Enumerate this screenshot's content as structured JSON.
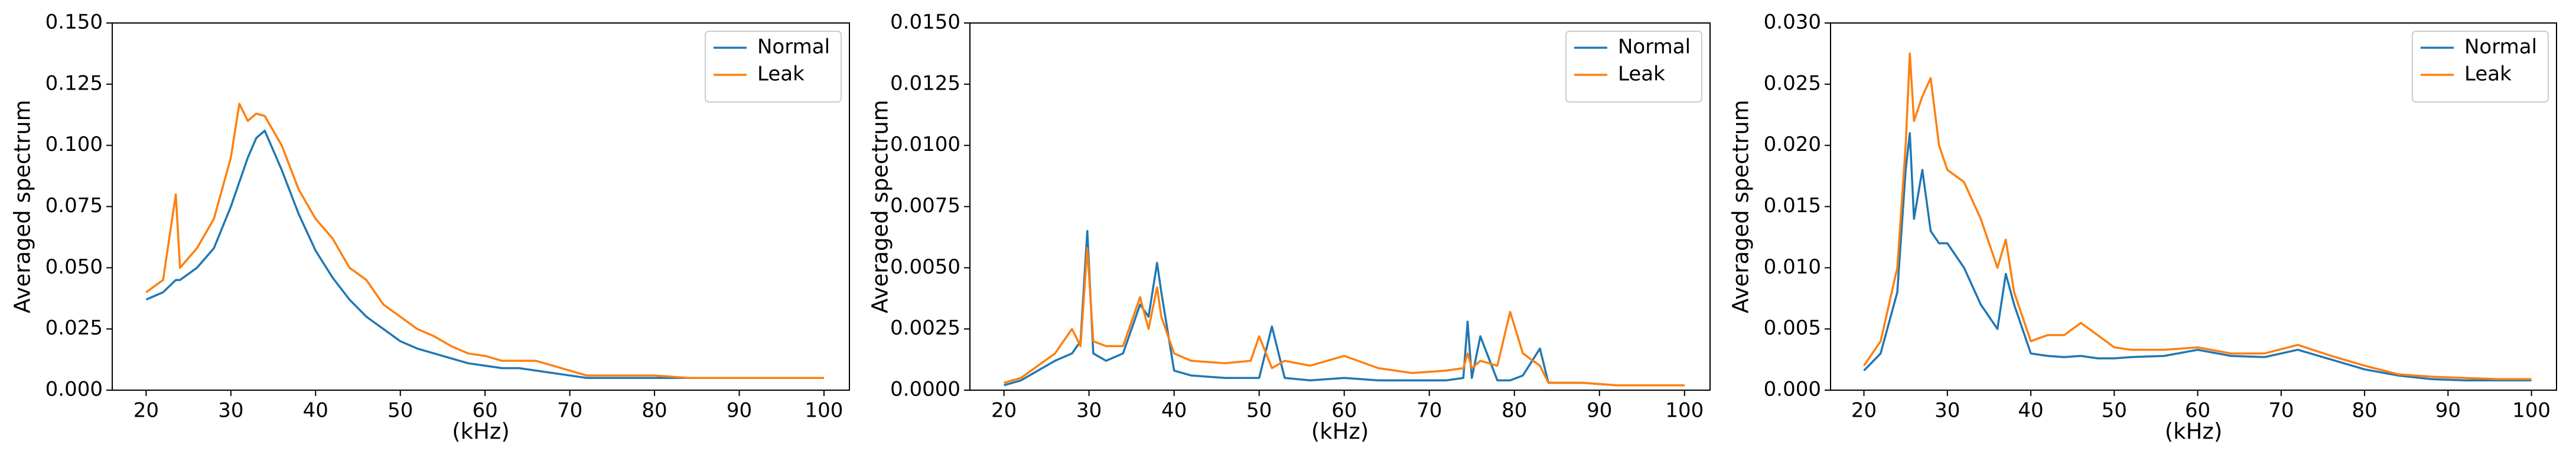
{
  "chart_data": [
    {
      "type": "line",
      "xlabel": "(kHz)",
      "ylabel": "Averaged spectrum",
      "legend": "upper right",
      "x": [
        20,
        22,
        23.5,
        24,
        26,
        28,
        30,
        31,
        32,
        33,
        34,
        36,
        38,
        40,
        42,
        44,
        46,
        48,
        50,
        52,
        54,
        56,
        58,
        60,
        62,
        64,
        66,
        68,
        70,
        72,
        74,
        76,
        78,
        80,
        84,
        88,
        92,
        96,
        100
      ],
      "series": [
        {
          "name": "Normal",
          "color": "#1f77b4",
          "values": [
            0.037,
            0.04,
            0.045,
            0.045,
            0.05,
            0.058,
            0.075,
            0.085,
            0.095,
            0.103,
            0.106,
            0.09,
            0.072,
            0.057,
            0.046,
            0.037,
            0.03,
            0.025,
            0.02,
            0.017,
            0.015,
            0.013,
            0.011,
            0.01,
            0.009,
            0.009,
            0.008,
            0.007,
            0.006,
            0.005,
            0.005,
            0.005,
            0.005,
            0.005,
            0.005,
            0.005,
            0.005,
            0.005,
            0.005
          ]
        },
        {
          "name": "Leak",
          "color": "#ff7f0e",
          "values": [
            0.04,
            0.045,
            0.08,
            0.05,
            0.058,
            0.07,
            0.095,
            0.117,
            0.11,
            0.113,
            0.112,
            0.1,
            0.082,
            0.07,
            0.062,
            0.05,
            0.045,
            0.035,
            0.03,
            0.025,
            0.022,
            0.018,
            0.015,
            0.014,
            0.012,
            0.012,
            0.012,
            0.01,
            0.008,
            0.006,
            0.006,
            0.006,
            0.006,
            0.006,
            0.005,
            0.005,
            0.005,
            0.005,
            0.005
          ]
        }
      ],
      "xlim": [
        16,
        103
      ],
      "xticks": [
        20,
        30,
        40,
        50,
        60,
        70,
        80,
        90,
        100
      ],
      "ylim": [
        0,
        0.15
      ],
      "yticks": [
        {
          "value": 0,
          "label": "0.000"
        },
        {
          "value": 0.025,
          "label": "0.025"
        },
        {
          "value": 0.05,
          "label": "0.050"
        },
        {
          "value": 0.075,
          "label": "0.075"
        },
        {
          "value": 0.1,
          "label": "0.100"
        },
        {
          "value": 0.125,
          "label": "0.125"
        },
        {
          "value": 0.15,
          "label": "0.150"
        }
      ]
    },
    {
      "type": "line",
      "xlabel": "(kHz)",
      "ylabel": "Averaged spectrum",
      "legend": "upper right",
      "x": [
        20,
        22,
        24,
        26,
        28,
        29,
        29.8,
        30.5,
        32,
        34,
        36,
        37,
        38,
        38.5,
        40,
        42,
        46,
        49,
        50,
        51.5,
        53,
        56,
        60,
        64,
        68,
        72,
        74,
        74.5,
        75,
        76,
        78,
        79.5,
        81,
        83,
        84,
        88,
        92,
        96,
        100
      ],
      "series": [
        {
          "name": "Normal",
          "color": "#1f77b4",
          "values": [
            0.0002,
            0.0004,
            0.0008,
            0.0012,
            0.0015,
            0.002,
            0.0065,
            0.0015,
            0.0012,
            0.0015,
            0.0035,
            0.003,
            0.0052,
            0.004,
            0.0008,
            0.0006,
            0.0005,
            0.0005,
            0.0005,
            0.0026,
            0.0005,
            0.0004,
            0.0005,
            0.0004,
            0.0004,
            0.0004,
            0.0005,
            0.0028,
            0.0005,
            0.0022,
            0.0004,
            0.0004,
            0.0006,
            0.0017,
            0.0003,
            0.0003,
            0.0002,
            0.0002,
            0.0002
          ]
        },
        {
          "name": "Leak",
          "color": "#ff7f0e",
          "values": [
            0.0003,
            0.0005,
            0.001,
            0.0015,
            0.0025,
            0.0018,
            0.0058,
            0.002,
            0.0018,
            0.0018,
            0.0038,
            0.0025,
            0.0042,
            0.003,
            0.0015,
            0.0012,
            0.0011,
            0.0012,
            0.0022,
            0.0009,
            0.0012,
            0.001,
            0.0014,
            0.0009,
            0.0007,
            0.0008,
            0.0009,
            0.0015,
            0.0009,
            0.0012,
            0.001,
            0.0032,
            0.0015,
            0.001,
            0.0003,
            0.0003,
            0.0002,
            0.0002,
            0.0002
          ]
        }
      ],
      "xlim": [
        16,
        103
      ],
      "xticks": [
        20,
        30,
        40,
        50,
        60,
        70,
        80,
        90,
        100
      ],
      "ylim": [
        0,
        0.015
      ],
      "yticks": [
        {
          "value": 0,
          "label": "0.0000"
        },
        {
          "value": 0.0025,
          "label": "0.0025"
        },
        {
          "value": 0.005,
          "label": "0.0050"
        },
        {
          "value": 0.0075,
          "label": "0.0075"
        },
        {
          "value": 0.01,
          "label": "0.0100"
        },
        {
          "value": 0.0125,
          "label": "0.0125"
        },
        {
          "value": 0.015,
          "label": "0.0150"
        }
      ]
    },
    {
      "type": "line",
      "xlabel": "(kHz)",
      "ylabel": "Averaged spectrum",
      "legend": "upper right",
      "x": [
        20,
        22,
        24,
        25,
        25.5,
        26,
        27,
        28,
        29,
        30,
        32,
        34,
        36,
        37,
        38,
        40,
        42,
        44,
        46,
        48,
        50,
        52,
        56,
        60,
        64,
        68,
        72,
        76,
        80,
        84,
        88,
        92,
        96,
        100
      ],
      "series": [
        {
          "name": "Normal",
          "color": "#1f77b4",
          "values": [
            0.0016,
            0.003,
            0.008,
            0.018,
            0.021,
            0.014,
            0.018,
            0.013,
            0.012,
            0.012,
            0.01,
            0.007,
            0.005,
            0.0095,
            0.007,
            0.003,
            0.0028,
            0.0027,
            0.0028,
            0.0026,
            0.0026,
            0.0027,
            0.0028,
            0.0033,
            0.0028,
            0.0027,
            0.0033,
            0.0025,
            0.0017,
            0.0012,
            0.0009,
            0.0008,
            0.0008,
            0.0008
          ]
        },
        {
          "name": "Leak",
          "color": "#ff7f0e",
          "values": [
            0.002,
            0.004,
            0.01,
            0.02,
            0.0275,
            0.022,
            0.024,
            0.0255,
            0.02,
            0.018,
            0.017,
            0.014,
            0.01,
            0.0123,
            0.008,
            0.004,
            0.0045,
            0.0045,
            0.0055,
            0.0045,
            0.0035,
            0.0033,
            0.0033,
            0.0035,
            0.003,
            0.003,
            0.0037,
            0.0028,
            0.002,
            0.0013,
            0.0011,
            0.001,
            0.0009,
            0.0009
          ]
        }
      ],
      "xlim": [
        16,
        103
      ],
      "xticks": [
        20,
        30,
        40,
        50,
        60,
        70,
        80,
        90,
        100
      ],
      "ylim": [
        0,
        0.03
      ],
      "yticks": [
        {
          "value": 0,
          "label": "0.000"
        },
        {
          "value": 0.005,
          "label": "0.005"
        },
        {
          "value": 0.01,
          "label": "0.010"
        },
        {
          "value": 0.015,
          "label": "0.015"
        },
        {
          "value": 0.02,
          "label": "0.020"
        },
        {
          "value": 0.025,
          "label": "0.025"
        },
        {
          "value": 0.03,
          "label": "0.030"
        }
      ]
    }
  ]
}
